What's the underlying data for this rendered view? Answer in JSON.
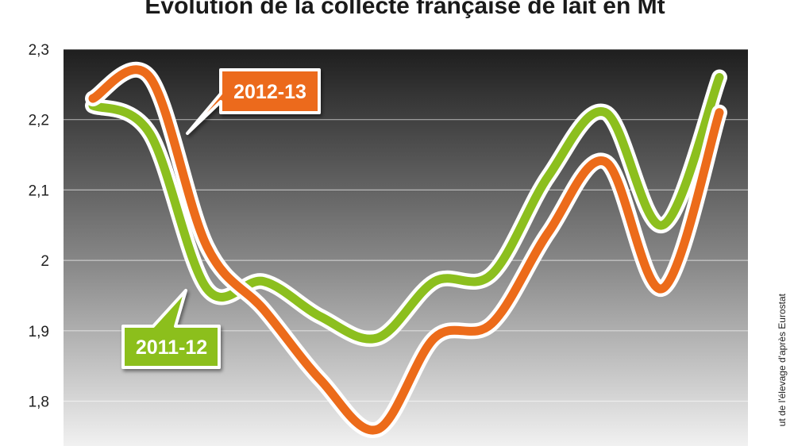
{
  "chart_data": {
    "type": "line",
    "title": "Évolution de la collecte française de lait en Mt",
    "yticks": [
      "2,3",
      "2,2",
      "2,1",
      "2",
      "1,9",
      "1,8"
    ],
    "ylim": [
      1.76,
      2.3
    ],
    "grid": true,
    "x": [
      1,
      2,
      3,
      4,
      5,
      6,
      7,
      8,
      9,
      10,
      11,
      12
    ],
    "series": [
      {
        "name": "2011-12",
        "color": "#8cbf1e",
        "values": [
          2.22,
          2.18,
          1.96,
          1.97,
          1.92,
          1.89,
          1.97,
          1.98,
          2.12,
          2.21,
          2.05,
          2.26
        ]
      },
      {
        "name": "2012-13",
        "color": "#ec6b1a",
        "values": [
          2.23,
          2.26,
          2.02,
          1.93,
          1.83,
          1.76,
          1.89,
          1.91,
          2.04,
          2.14,
          1.96,
          2.21
        ]
      }
    ],
    "source": "ut de l'élevage d'après Eurostat"
  }
}
